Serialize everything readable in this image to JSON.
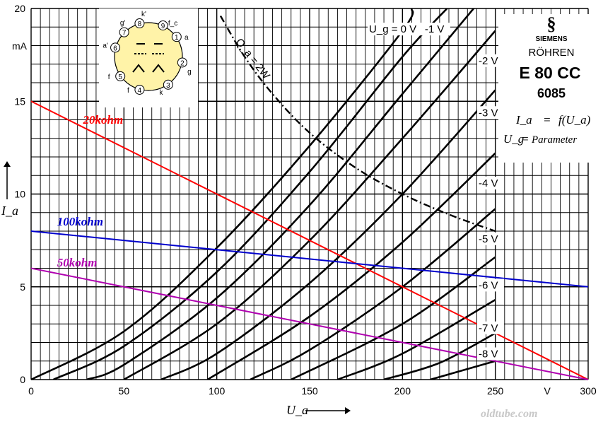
{
  "chart_data": {
    "type": "line",
    "title": "",
    "xlabel": "U_a",
    "xunit": "V",
    "ylabel": "I_a",
    "yunit": "mA",
    "xlim": [
      0,
      300
    ],
    "ylim": [
      0,
      20
    ],
    "xticks": [
      0,
      50,
      100,
      150,
      200,
      250,
      300
    ],
    "yticks": [
      0,
      5,
      10,
      15,
      20
    ],
    "grid": true,
    "brand": {
      "maker": "SIEMENS",
      "line": "RÖHREN",
      "tube": "E 80 CC",
      "alt_tube": "6085"
    },
    "formula": {
      "lhs": "I_a",
      "rhs": "f(U_a)",
      "param_name": "U_g",
      "param_value": "Parameter"
    },
    "dissipation": {
      "label": "Q_a = 2W",
      "watts": 2
    },
    "pinout": {
      "labels": [
        {
          "pin": "1",
          "name": "a"
        },
        {
          "pin": "2",
          "name": "g"
        },
        {
          "pin": "3",
          "name": "k"
        },
        {
          "pin": "4",
          "name": "f"
        },
        {
          "pin": "5",
          "name": "f"
        },
        {
          "pin": "6",
          "name": "a'"
        },
        {
          "pin": "7",
          "name": "g'"
        },
        {
          "pin": "8",
          "name": "k'"
        },
        {
          "pin": "9",
          "name": "f_c"
        }
      ]
    },
    "series": [
      {
        "name": "0 V",
        "grid_label": "U_g = 0 V",
        "points": [
          [
            0,
            0
          ],
          [
            50,
            2.6
          ],
          [
            100,
            7.1
          ],
          [
            150,
            12.6
          ],
          [
            200,
            18.8
          ],
          [
            205,
            20
          ]
        ]
      },
      {
        "name": "-1 V",
        "grid_label": "-1 V",
        "points": [
          [
            12,
            0
          ],
          [
            50,
            1.8
          ],
          [
            100,
            5.8
          ],
          [
            150,
            11.2
          ],
          [
            200,
            17.4
          ],
          [
            224,
            20
          ]
        ]
      },
      {
        "name": "-2 V",
        "grid_label": "-2 V",
        "points": [
          [
            30,
            0
          ],
          [
            50,
            0.8
          ],
          [
            100,
            4.4
          ],
          [
            150,
            9.4
          ],
          [
            200,
            15.4
          ],
          [
            250,
            21.4
          ]
        ]
      },
      {
        "name": "-3 V",
        "grid_label": "-3 V",
        "points": [
          [
            50,
            0
          ],
          [
            100,
            3.0
          ],
          [
            150,
            7.5
          ],
          [
            200,
            13.0
          ],
          [
            250,
            18.8
          ]
        ]
      },
      {
        "name": "-4 V",
        "grid_label": "-4 V",
        "points": [
          [
            70,
            0
          ],
          [
            100,
            1.4
          ],
          [
            150,
            5.2
          ],
          [
            200,
            10.0
          ],
          [
            250,
            15.6
          ]
        ]
      },
      {
        "name": "-5 V",
        "grid_label": "-5 V",
        "points": [
          [
            95,
            0
          ],
          [
            150,
            3.4
          ],
          [
            200,
            7.4
          ],
          [
            250,
            12.2
          ]
        ]
      },
      {
        "name": "-6 V",
        "grid_label": "-6 V",
        "points": [
          [
            118,
            0
          ],
          [
            150,
            1.6
          ],
          [
            200,
            5.0
          ],
          [
            250,
            9.2
          ]
        ]
      },
      {
        "name": "-7 V",
        "grid_label": "-7 V",
        "points": [
          [
            140,
            0
          ],
          [
            200,
            3.0
          ],
          [
            250,
            6.6
          ]
        ]
      },
      {
        "name": "-8 V",
        "grid_label": "-8 V",
        "points": [
          [
            165,
            0
          ],
          [
            200,
            1.4
          ],
          [
            250,
            4.3
          ]
        ]
      },
      {
        "name": "-9 V",
        "grid_label": "",
        "points": [
          [
            190,
            0
          ],
          [
            220,
            0.9
          ],
          [
            250,
            2.5
          ]
        ]
      },
      {
        "name": "-10 V",
        "grid_label": "",
        "points": [
          [
            215,
            0
          ],
          [
            250,
            1.0
          ]
        ]
      }
    ],
    "load_lines": [
      {
        "name": "20kohm",
        "color": "#ff0000",
        "points": [
          [
            0,
            15
          ],
          [
            300,
            0
          ]
        ]
      },
      {
        "name": "100kohm",
        "color": "#0000cc",
        "points": [
          [
            0,
            8
          ],
          [
            300,
            5
          ]
        ]
      },
      {
        "name": "50kohm",
        "color": "#b000b0",
        "points": [
          [
            0,
            6
          ],
          [
            300,
            0
          ]
        ]
      }
    ],
    "power_curve": {
      "points": [
        [
          102,
          19.6
        ],
        [
          115,
          17.4
        ],
        [
          130,
          15.4
        ],
        [
          150,
          13.3
        ],
        [
          175,
          11.4
        ],
        [
          200,
          10
        ],
        [
          225,
          8.9
        ],
        [
          250,
          8
        ]
      ]
    },
    "watermark": "oldtube.com"
  }
}
